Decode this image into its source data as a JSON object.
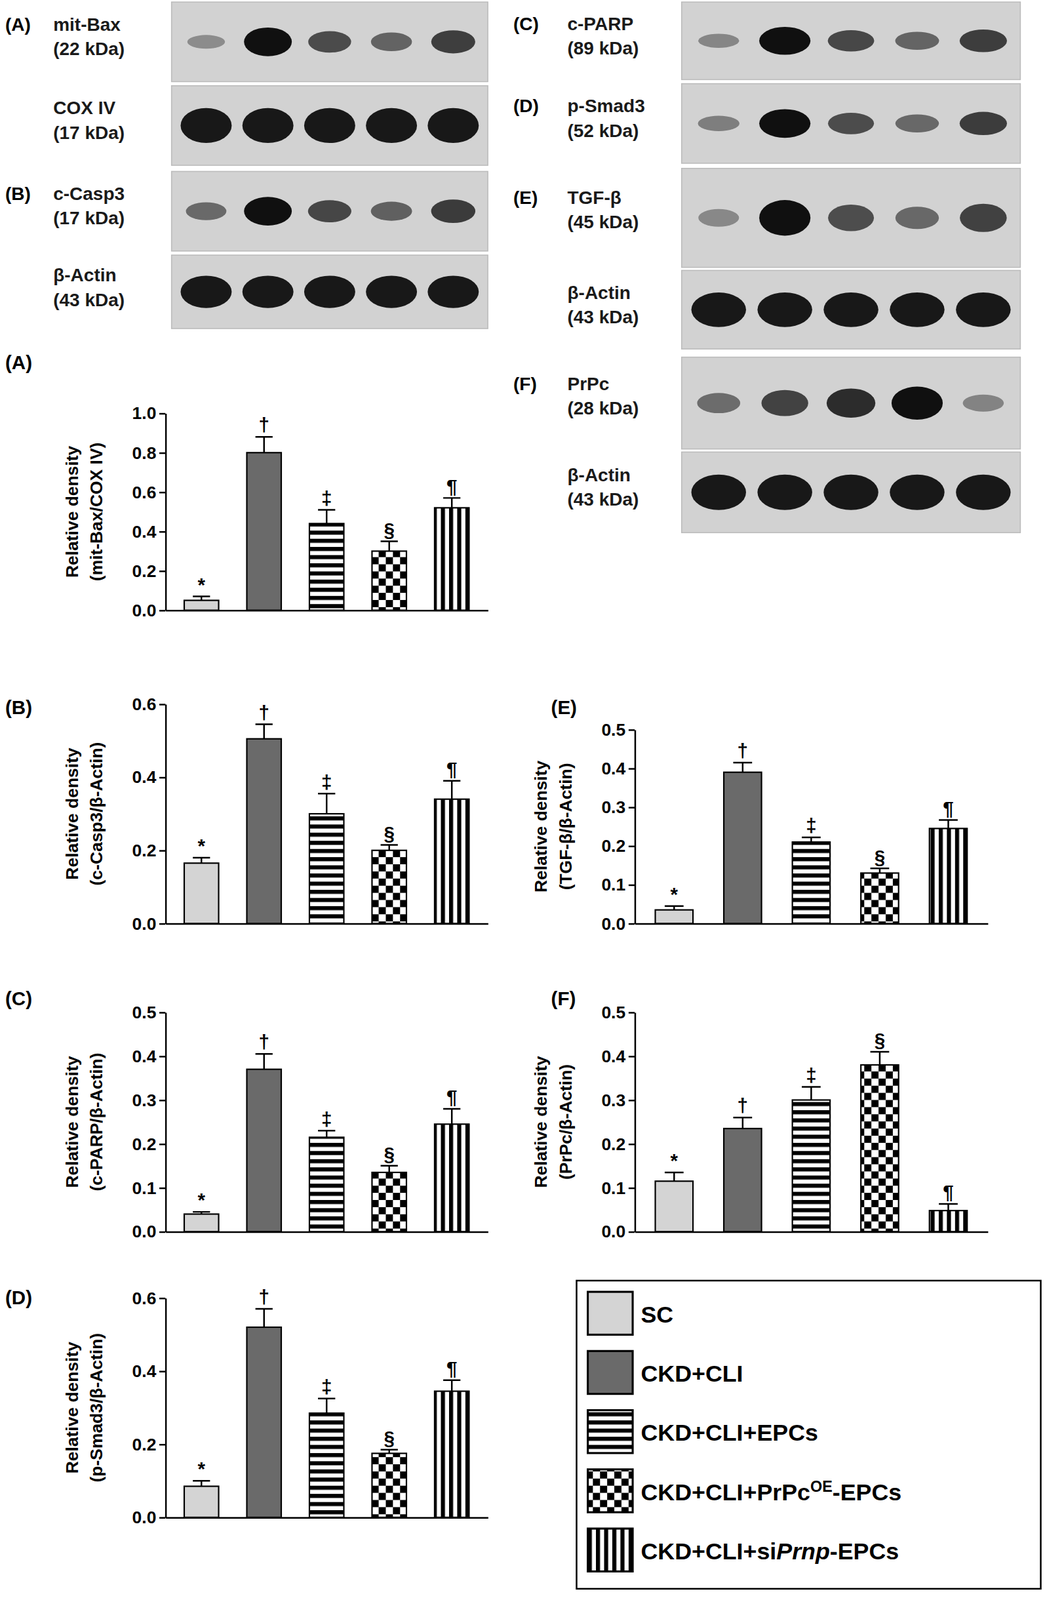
{
  "chart_data": [
    {
      "type": "bar",
      "title": "(A)",
      "y_label": [
        "Relative density",
        "(mit-Bax/COX IV)"
      ],
      "categories": [
        null,
        null,
        null,
        null,
        null
      ],
      "values": [
        0.05,
        0.8,
        0.44,
        0.3,
        0.52
      ],
      "errors": [
        0.02,
        0.08,
        0.07,
        0.05,
        0.05
      ],
      "annotations": [
        "*",
        "†",
        "‡",
        "§",
        "¶"
      ],
      "ylim": [
        0,
        1.0
      ],
      "yticks": [
        {
          "value": 0,
          "label": "0.0"
        },
        0.2,
        0.4,
        0.6,
        0.8,
        {
          "value": 1.0,
          "label": "1.0"
        }
      ],
      "tick_labels": "y"
    },
    {
      "type": "bar",
      "title": "(B)",
      "y_label": [
        "Relative density",
        "(c-Casp3/β-Actin)"
      ],
      "categories": [
        null,
        null,
        null,
        null,
        null
      ],
      "values": [
        0.165,
        0.505,
        0.3,
        0.2,
        0.34
      ],
      "errors": [
        0.015,
        0.04,
        0.055,
        0.015,
        0.05
      ],
      "annotations": [
        "*",
        "†",
        "‡",
        "§",
        "¶"
      ],
      "ylim": [
        0,
        0.6
      ],
      "yticks": [
        {
          "value": 0,
          "label": "0.0"
        },
        0.2,
        0.4,
        0.6
      ],
      "tick_labels": "y"
    },
    {
      "type": "bar",
      "title": "(C)",
      "y_label": [
        "Relative density",
        "(c-PARP/β-Actin)"
      ],
      "categories": [
        null,
        null,
        null,
        null,
        null
      ],
      "values": [
        0.04,
        0.37,
        0.215,
        0.135,
        0.245
      ],
      "errors": [
        0.005,
        0.035,
        0.015,
        0.015,
        0.035
      ],
      "annotations": [
        "*",
        "†",
        "‡",
        "§",
        "¶"
      ],
      "ylim": [
        0,
        0.5
      ],
      "yticks": [
        {
          "value": 0,
          "label": "0.0"
        },
        0.1,
        0.2,
        0.3,
        0.4,
        0.5
      ],
      "tick_labels": "y"
    },
    {
      "type": "bar",
      "title": "(D)",
      "y_label": [
        "Relative density",
        "(p-Smad3/β-Actin)"
      ],
      "categories": [
        null,
        null,
        null,
        null,
        null
      ],
      "values": [
        0.085,
        0.52,
        0.285,
        0.175,
        0.345
      ],
      "errors": [
        0.015,
        0.05,
        0.04,
        0.01,
        0.03
      ],
      "annotations": [
        "*",
        "†",
        "‡",
        "§",
        "¶"
      ],
      "ylim": [
        0,
        0.6
      ],
      "yticks": [
        {
          "value": 0,
          "label": "0.0"
        },
        0.2,
        0.4,
        0.6
      ],
      "tick_labels": "y"
    },
    {
      "type": "bar",
      "title": "(E)",
      "y_label": [
        "Relative density",
        "(TGF-β/β-Actin)"
      ],
      "categories": [
        null,
        null,
        null,
        null,
        null
      ],
      "values": [
        0.035,
        0.39,
        0.21,
        0.13,
        0.245
      ],
      "errors": [
        0.01,
        0.025,
        0.012,
        0.012,
        0.022
      ],
      "annotations": [
        "*",
        "†",
        "‡",
        "§",
        "¶"
      ],
      "ylim": [
        0,
        0.5
      ],
      "yticks": [
        {
          "value": 0,
          "label": "0.0"
        },
        0.1,
        0.2,
        0.3,
        0.4,
        0.5
      ],
      "tick_labels": "y"
    },
    {
      "type": "bar",
      "title": "(F)",
      "y_label": [
        "Relative density",
        "(PrPc/β-Actin)"
      ],
      "categories": [
        null,
        null,
        null,
        null,
        null
      ],
      "values": [
        0.115,
        0.235,
        0.3,
        0.38,
        0.048
      ],
      "errors": [
        0.02,
        0.025,
        0.03,
        0.03,
        0.015
      ],
      "annotations": [
        "*",
        "†",
        "‡",
        "§",
        "¶"
      ],
      "ylim": [
        0,
        0.5
      ],
      "yticks": [
        {
          "value": 0,
          "label": "0.0"
        },
        0.1,
        0.2,
        0.3,
        0.4,
        0.5
      ],
      "tick_labels": "y"
    }
  ],
  "groups": [
    {
      "name_parts": [
        {
          "text": "SC"
        }
      ],
      "color": "#d4d4d4"
    },
    {
      "name_parts": [
        {
          "text": "CKD+CLI"
        }
      ],
      "color": "#6a6a6a"
    },
    {
      "name_parts": [
        {
          "text": "CKD+CLI+EPCs"
        }
      ],
      "color": "#000000"
    },
    {
      "name_parts": [
        {
          "text": "CKD+CLI+PrPc"
        },
        {
          "text": "OE",
          "style": "superscript"
        },
        {
          "text": "-EPCs"
        }
      ],
      "color": "#000000"
    },
    {
      "name_parts": [
        {
          "text": "CKD+CLI+si"
        },
        {
          "text": "Prnp",
          "style": "italic"
        },
        {
          "text": "-EPCs"
        }
      ],
      "color": "#000000"
    }
  ],
  "blots": {
    "left": [
      {
        "panel": "(A)",
        "protein": "mit-Bax",
        "size": "(22 kDa)"
      },
      {
        "protein": "COX IV",
        "size": "(17 kDa)"
      },
      {
        "panel": "(B)",
        "protein": "c-Casp3",
        "size": "(17 kDa)"
      },
      {
        "protein": "β-Actin",
        "size": "(43 kDa)"
      }
    ],
    "right": [
      {
        "panel": "(C)",
        "protein": "c-PARP",
        "size": "(89 kDa)"
      },
      {
        "panel": "(D)",
        "protein": "p-Smad3",
        "size": "(52 kDa)"
      },
      {
        "panel": "(E)",
        "protein": "TGF-β",
        "size": "(45 kDa)"
      },
      {
        "protein": "β-Actin",
        "size": "(43 kDa)"
      },
      {
        "panel": "(F)",
        "protein": "PrPc",
        "size": "(28 kDa)"
      },
      {
        "protein": "β-Actin",
        "size": "(43 kDa)"
      }
    ]
  }
}
